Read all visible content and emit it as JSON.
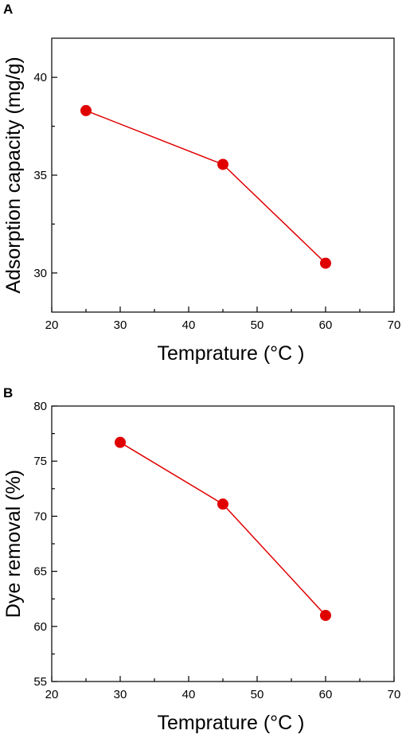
{
  "chart_data": [
    {
      "panel_label": "A",
      "type": "line",
      "xlabel": "Temprature (°C )",
      "ylabel": "Adsorption capacity (mg/g)",
      "xlim": [
        20,
        70
      ],
      "ylim": [
        28,
        42
      ],
      "xticks": [
        20,
        30,
        40,
        50,
        60,
        70
      ],
      "yticks": [
        30,
        35,
        40
      ],
      "x": [
        25,
        45,
        60
      ],
      "series": [
        {
          "values": [
            38.3,
            35.55,
            30.5
          ],
          "color": "#e00000"
        }
      ],
      "grid": false,
      "legend": "none"
    },
    {
      "panel_label": "B",
      "type": "line",
      "xlabel": "Temprature (°C )",
      "ylabel": "Dye removal  (%)",
      "xlim": [
        20,
        70
      ],
      "ylim": [
        55,
        80
      ],
      "xticks": [
        20,
        30,
        40,
        50,
        60,
        70
      ],
      "yticks": [
        55,
        60,
        65,
        70,
        75,
        80
      ],
      "x": [
        30,
        45,
        60
      ],
      "series": [
        {
          "values": [
            76.7,
            71.1,
            61.0
          ],
          "color": "#e00000"
        }
      ],
      "grid": false,
      "legend": "none"
    }
  ]
}
